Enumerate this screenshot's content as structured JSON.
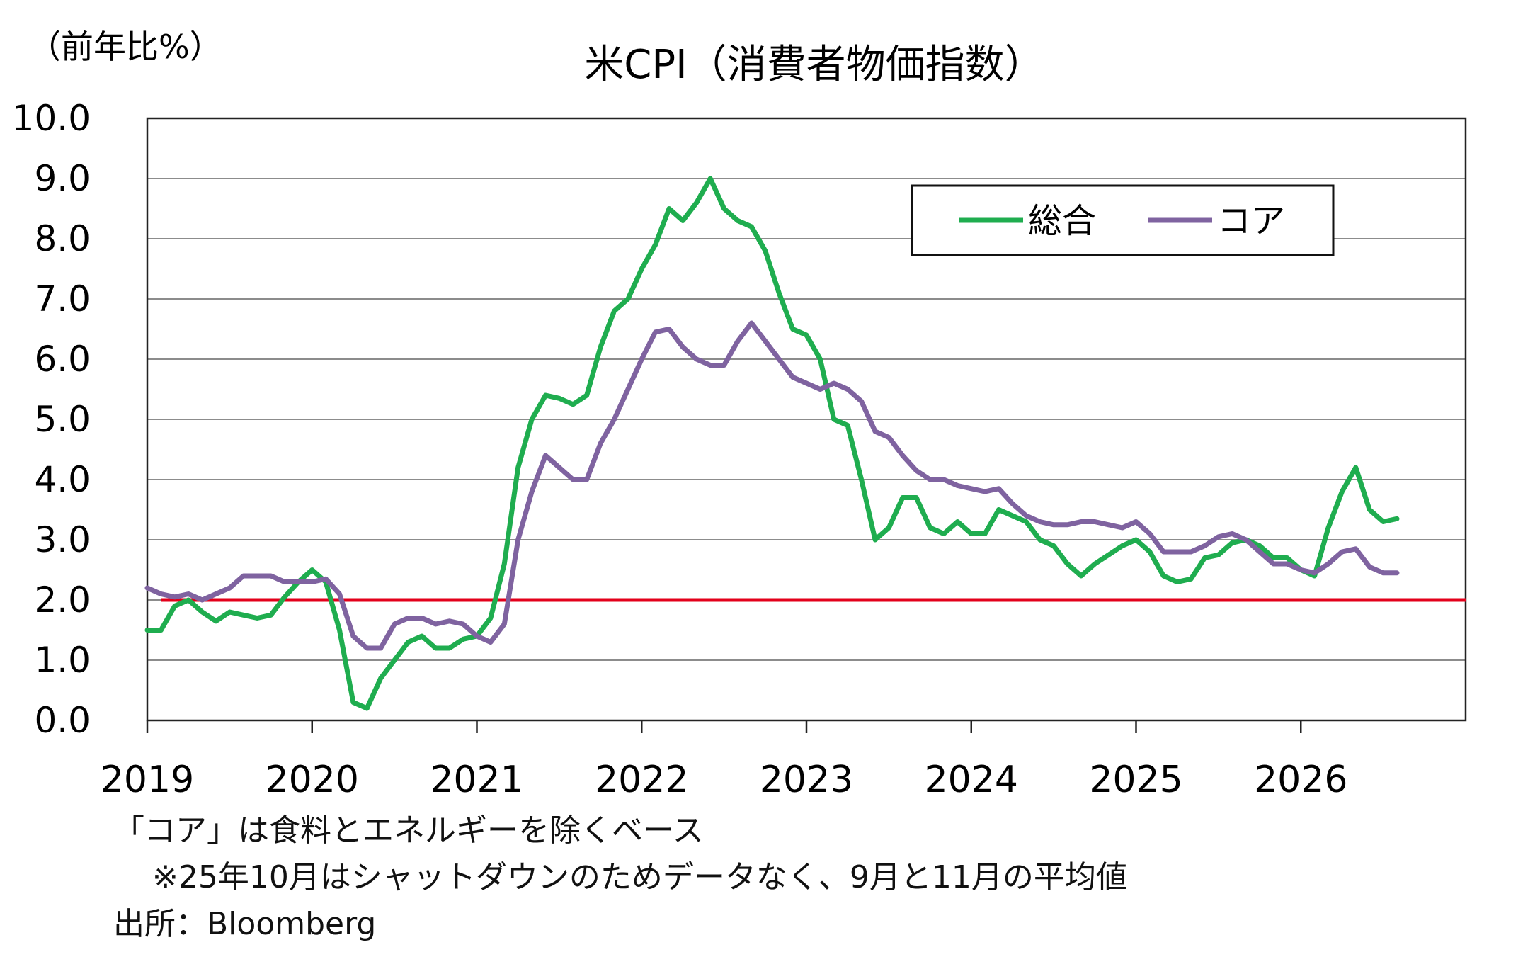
{
  "chart_data": {
    "type": "line",
    "title": "米CPI（消費者物価指数）",
    "ylabel": "（前年比%）",
    "ylim": [
      0,
      10
    ],
    "xlim": [
      2019,
      2027
    ],
    "y_ticks": [
      "0.0",
      "1.0",
      "2.0",
      "3.0",
      "4.0",
      "5.0",
      "6.0",
      "7.0",
      "8.0",
      "9.0",
      "10.0"
    ],
    "x_ticks": [
      "2019",
      "2020",
      "2021",
      "2022",
      "2023",
      "2024",
      "2025",
      "2026"
    ],
    "grid": true,
    "legend": "top-right",
    "target_line": {
      "value": 2.0,
      "color": "#e3001b"
    },
    "x_start": "2019-01",
    "series": [
      {
        "name": "総合",
        "color": "#1fad4f",
        "values": [
          1.5,
          1.5,
          1.9,
          2.0,
          1.8,
          1.65,
          1.8,
          1.75,
          1.7,
          1.75,
          2.05,
          2.3,
          2.5,
          2.3,
          1.5,
          0.3,
          0.2,
          0.7,
          1.0,
          1.3,
          1.4,
          1.2,
          1.2,
          1.35,
          1.4,
          1.7,
          2.6,
          4.2,
          5.0,
          5.4,
          5.35,
          5.25,
          5.4,
          6.2,
          6.8,
          7.0,
          7.5,
          7.9,
          8.5,
          8.3,
          8.6,
          9.0,
          8.5,
          8.3,
          8.2,
          7.8,
          7.1,
          6.5,
          6.4,
          6.0,
          5.0,
          4.9,
          4.0,
          3.0,
          3.2,
          3.7,
          3.7,
          3.2,
          3.1,
          3.3,
          3.1,
          3.1,
          3.5,
          3.4,
          3.3,
          3.0,
          2.9,
          2.6,
          2.4,
          2.6,
          2.75,
          2.9,
          3.0,
          2.8,
          2.4,
          2.3,
          2.35,
          2.7,
          2.75,
          2.95,
          3.0,
          2.9,
          2.7,
          2.7,
          2.5,
          2.4,
          3.2,
          3.8,
          4.2,
          3.5,
          3.3,
          3.35
        ]
      },
      {
        "name": "コア",
        "color": "#7f63a0",
        "values": [
          2.2,
          2.1,
          2.05,
          2.1,
          2.0,
          2.1,
          2.2,
          2.4,
          2.4,
          2.4,
          2.3,
          2.3,
          2.3,
          2.35,
          2.1,
          1.4,
          1.2,
          1.2,
          1.6,
          1.7,
          1.7,
          1.6,
          1.65,
          1.6,
          1.4,
          1.3,
          1.6,
          3.0,
          3.8,
          4.4,
          4.2,
          4.0,
          4.0,
          4.6,
          5.0,
          5.5,
          6.0,
          6.45,
          6.5,
          6.2,
          6.0,
          5.9,
          5.9,
          6.3,
          6.6,
          6.3,
          6.0,
          5.7,
          5.6,
          5.5,
          5.6,
          5.5,
          5.3,
          4.8,
          4.7,
          4.4,
          4.15,
          4.0,
          4.0,
          3.9,
          3.85,
          3.8,
          3.85,
          3.6,
          3.4,
          3.3,
          3.25,
          3.25,
          3.3,
          3.3,
          3.25,
          3.2,
          3.3,
          3.1,
          2.8,
          2.8,
          2.8,
          2.9,
          3.05,
          3.1,
          3.0,
          2.8,
          2.6,
          2.6,
          2.5,
          2.45,
          2.6,
          2.8,
          2.85,
          2.55,
          2.45,
          2.45
        ]
      }
    ]
  },
  "notes": {
    "line1": "「コア」は食料とエネルギーを除くベース",
    "line2": "※25年10月はシャットダウンのためデータなく、9月と11月の平均値",
    "line3": "出所：Bloomberg"
  }
}
